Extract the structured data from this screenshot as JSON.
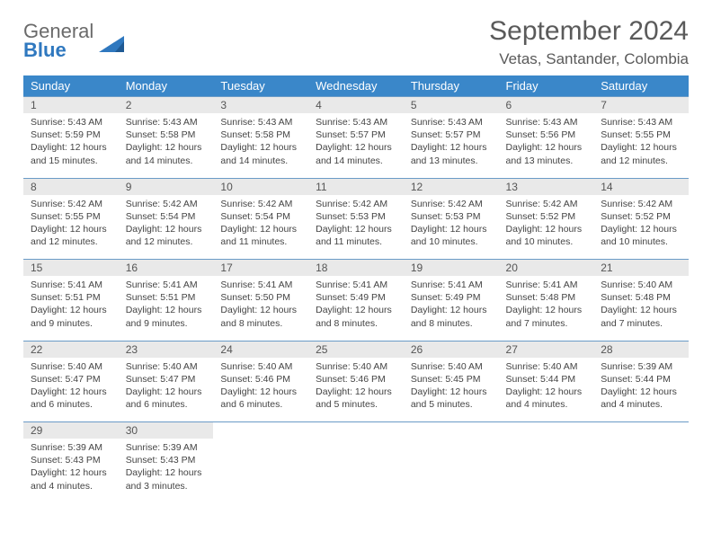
{
  "brand": {
    "word1": "General",
    "word2": "Blue"
  },
  "title": "September 2024",
  "location": "Vetas, Santander, Colombia",
  "colors": {
    "header_bg": "#3a87c9",
    "header_text": "#ffffff",
    "daynum_bg": "#e9e9e9",
    "row_divider": "#6a9bc7",
    "body_text": "#444444",
    "title_text": "#5a5a5a",
    "brand_gray": "#6a6a6a",
    "brand_blue": "#2f78bf",
    "page_bg": "#ffffff"
  },
  "typography": {
    "title_fontsize": 30,
    "location_fontsize": 17,
    "header_fontsize": 13,
    "daynum_fontsize": 12,
    "cell_fontsize": 10.5
  },
  "weekdays": [
    "Sunday",
    "Monday",
    "Tuesday",
    "Wednesday",
    "Thursday",
    "Friday",
    "Saturday"
  ],
  "weeks": [
    [
      {
        "n": "1",
        "sr": "Sunrise: 5:43 AM",
        "ss": "Sunset: 5:59 PM",
        "d1": "Daylight: 12 hours",
        "d2": "and 15 minutes."
      },
      {
        "n": "2",
        "sr": "Sunrise: 5:43 AM",
        "ss": "Sunset: 5:58 PM",
        "d1": "Daylight: 12 hours",
        "d2": "and 14 minutes."
      },
      {
        "n": "3",
        "sr": "Sunrise: 5:43 AM",
        "ss": "Sunset: 5:58 PM",
        "d1": "Daylight: 12 hours",
        "d2": "and 14 minutes."
      },
      {
        "n": "4",
        "sr": "Sunrise: 5:43 AM",
        "ss": "Sunset: 5:57 PM",
        "d1": "Daylight: 12 hours",
        "d2": "and 14 minutes."
      },
      {
        "n": "5",
        "sr": "Sunrise: 5:43 AM",
        "ss": "Sunset: 5:57 PM",
        "d1": "Daylight: 12 hours",
        "d2": "and 13 minutes."
      },
      {
        "n": "6",
        "sr": "Sunrise: 5:43 AM",
        "ss": "Sunset: 5:56 PM",
        "d1": "Daylight: 12 hours",
        "d2": "and 13 minutes."
      },
      {
        "n": "7",
        "sr": "Sunrise: 5:43 AM",
        "ss": "Sunset: 5:55 PM",
        "d1": "Daylight: 12 hours",
        "d2": "and 12 minutes."
      }
    ],
    [
      {
        "n": "8",
        "sr": "Sunrise: 5:42 AM",
        "ss": "Sunset: 5:55 PM",
        "d1": "Daylight: 12 hours",
        "d2": "and 12 minutes."
      },
      {
        "n": "9",
        "sr": "Sunrise: 5:42 AM",
        "ss": "Sunset: 5:54 PM",
        "d1": "Daylight: 12 hours",
        "d2": "and 12 minutes."
      },
      {
        "n": "10",
        "sr": "Sunrise: 5:42 AM",
        "ss": "Sunset: 5:54 PM",
        "d1": "Daylight: 12 hours",
        "d2": "and 11 minutes."
      },
      {
        "n": "11",
        "sr": "Sunrise: 5:42 AM",
        "ss": "Sunset: 5:53 PM",
        "d1": "Daylight: 12 hours",
        "d2": "and 11 minutes."
      },
      {
        "n": "12",
        "sr": "Sunrise: 5:42 AM",
        "ss": "Sunset: 5:53 PM",
        "d1": "Daylight: 12 hours",
        "d2": "and 10 minutes."
      },
      {
        "n": "13",
        "sr": "Sunrise: 5:42 AM",
        "ss": "Sunset: 5:52 PM",
        "d1": "Daylight: 12 hours",
        "d2": "and 10 minutes."
      },
      {
        "n": "14",
        "sr": "Sunrise: 5:42 AM",
        "ss": "Sunset: 5:52 PM",
        "d1": "Daylight: 12 hours",
        "d2": "and 10 minutes."
      }
    ],
    [
      {
        "n": "15",
        "sr": "Sunrise: 5:41 AM",
        "ss": "Sunset: 5:51 PM",
        "d1": "Daylight: 12 hours",
        "d2": "and 9 minutes."
      },
      {
        "n": "16",
        "sr": "Sunrise: 5:41 AM",
        "ss": "Sunset: 5:51 PM",
        "d1": "Daylight: 12 hours",
        "d2": "and 9 minutes."
      },
      {
        "n": "17",
        "sr": "Sunrise: 5:41 AM",
        "ss": "Sunset: 5:50 PM",
        "d1": "Daylight: 12 hours",
        "d2": "and 8 minutes."
      },
      {
        "n": "18",
        "sr": "Sunrise: 5:41 AM",
        "ss": "Sunset: 5:49 PM",
        "d1": "Daylight: 12 hours",
        "d2": "and 8 minutes."
      },
      {
        "n": "19",
        "sr": "Sunrise: 5:41 AM",
        "ss": "Sunset: 5:49 PM",
        "d1": "Daylight: 12 hours",
        "d2": "and 8 minutes."
      },
      {
        "n": "20",
        "sr": "Sunrise: 5:41 AM",
        "ss": "Sunset: 5:48 PM",
        "d1": "Daylight: 12 hours",
        "d2": "and 7 minutes."
      },
      {
        "n": "21",
        "sr": "Sunrise: 5:40 AM",
        "ss": "Sunset: 5:48 PM",
        "d1": "Daylight: 12 hours",
        "d2": "and 7 minutes."
      }
    ],
    [
      {
        "n": "22",
        "sr": "Sunrise: 5:40 AM",
        "ss": "Sunset: 5:47 PM",
        "d1": "Daylight: 12 hours",
        "d2": "and 6 minutes."
      },
      {
        "n": "23",
        "sr": "Sunrise: 5:40 AM",
        "ss": "Sunset: 5:47 PM",
        "d1": "Daylight: 12 hours",
        "d2": "and 6 minutes."
      },
      {
        "n": "24",
        "sr": "Sunrise: 5:40 AM",
        "ss": "Sunset: 5:46 PM",
        "d1": "Daylight: 12 hours",
        "d2": "and 6 minutes."
      },
      {
        "n": "25",
        "sr": "Sunrise: 5:40 AM",
        "ss": "Sunset: 5:46 PM",
        "d1": "Daylight: 12 hours",
        "d2": "and 5 minutes."
      },
      {
        "n": "26",
        "sr": "Sunrise: 5:40 AM",
        "ss": "Sunset: 5:45 PM",
        "d1": "Daylight: 12 hours",
        "d2": "and 5 minutes."
      },
      {
        "n": "27",
        "sr": "Sunrise: 5:40 AM",
        "ss": "Sunset: 5:44 PM",
        "d1": "Daylight: 12 hours",
        "d2": "and 4 minutes."
      },
      {
        "n": "28",
        "sr": "Sunrise: 5:39 AM",
        "ss": "Sunset: 5:44 PM",
        "d1": "Daylight: 12 hours",
        "d2": "and 4 minutes."
      }
    ],
    [
      {
        "n": "29",
        "sr": "Sunrise: 5:39 AM",
        "ss": "Sunset: 5:43 PM",
        "d1": "Daylight: 12 hours",
        "d2": "and 4 minutes."
      },
      {
        "n": "30",
        "sr": "Sunrise: 5:39 AM",
        "ss": "Sunset: 5:43 PM",
        "d1": "Daylight: 12 hours",
        "d2": "and 3 minutes."
      },
      null,
      null,
      null,
      null,
      null
    ]
  ]
}
